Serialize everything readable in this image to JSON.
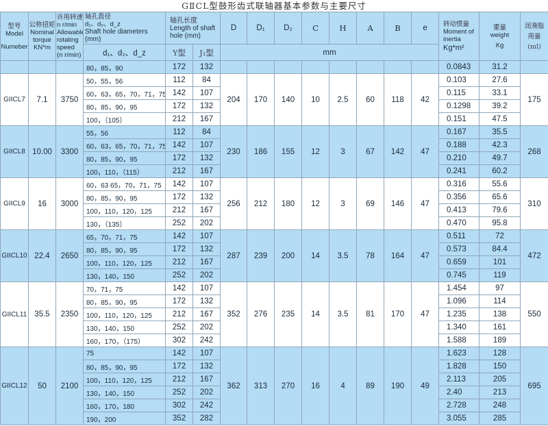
{
  "title": "GⅡCL型鼓形齿式联轴器基本参数与主要尺寸",
  "header": {
    "model": [
      "型号",
      "Model",
      "Numeber"
    ],
    "torque": [
      "公称扭矩",
      "Nominal",
      "torque",
      "KN*m"
    ],
    "speed": [
      "许用转速",
      "n r/min",
      "Allowable",
      "rotating",
      "speed",
      "(n r/min)"
    ],
    "diam": [
      "轴孔直径",
      "d₁、d₂、d_z",
      "Shaft hole diameters (mm)"
    ],
    "diam_sub": "d₁、d₂、d_z",
    "length": [
      "轴孔长度",
      "Length of shaft",
      "hole (mm)"
    ],
    "y_type": "Y型",
    "j_type": "J₁型",
    "dims": [
      "D",
      "D₁",
      "D₂",
      "C",
      "H",
      "A",
      "B",
      "e"
    ],
    "mm": "mm",
    "inertia": [
      "转动惯量",
      "Moment of",
      "inertia",
      "Kg*m²"
    ],
    "weight": [
      "重量",
      "weight",
      "Kg"
    ],
    "grease": [
      "润滑脂",
      "用量",
      "(ml)"
    ]
  },
  "colors": {
    "blue": "#b4dcf4",
    "border": "#8fa6b8"
  },
  "groups": [
    {
      "model": "",
      "torque": "",
      "speed": "",
      "dims": [
        "",
        "",
        "",
        "",
        "",
        "",
        "",
        ""
      ],
      "grease": "",
      "color": "blue",
      "rows": [
        [
          "80，85，90",
          "172",
          "132",
          "0.0843",
          "31.2"
        ]
      ]
    },
    {
      "model": "GIICL7",
      "torque": "7.1",
      "speed": "3750",
      "dims": [
        "204",
        "170",
        "140",
        "10",
        "2.5",
        "60",
        "118",
        "42"
      ],
      "grease": "175",
      "color": "white",
      "rows": [
        [
          "50，55，56",
          "112",
          "84",
          "0.103",
          "27.6"
        ],
        [
          "60，63，65，70，71，75",
          "142",
          "107",
          "0.115",
          "33.1"
        ],
        [
          "80，85，90，95",
          "172",
          "132",
          "0.1298",
          "39.2"
        ],
        [
          "100，（105）",
          "212",
          "167",
          "0.151",
          "47.5"
        ]
      ]
    },
    {
      "model": "GIICL8",
      "torque": "10.00",
      "speed": "3300",
      "dims": [
        "230",
        "186",
        "155",
        "12",
        "3",
        "67",
        "142",
        "47"
      ],
      "grease": "268",
      "color": "blue",
      "rows": [
        [
          "55，56",
          "112",
          "84",
          "0.167",
          "35.5"
        ],
        [
          "60，63，65，70，71，75",
          "142",
          "107",
          "0.188",
          "42.3"
        ],
        [
          "80，85，90，95",
          "172",
          "132",
          "0.210",
          "49.7"
        ],
        [
          "100，110，（115）",
          "212",
          "167",
          "0.241",
          "60.2"
        ]
      ]
    },
    {
      "model": "GIICL9",
      "torque": "16",
      "speed": "3000",
      "dims": [
        "256",
        "212",
        "180",
        "12",
        "3",
        "69",
        "146",
        "47"
      ],
      "grease": "310",
      "color": "white",
      "rows": [
        [
          "60，63  65，70，71，75",
          "142",
          "107",
          "0.316",
          "55.6"
        ],
        [
          "80，85，90，95",
          "172",
          "132",
          "0.356",
          "65.6"
        ],
        [
          "100，110，120，125",
          "212",
          "167",
          "0.413",
          "79.6"
        ],
        [
          "130，（135）",
          "252",
          "202",
          "0.470",
          "95.8"
        ]
      ]
    },
    {
      "model": "GIICL10",
      "torque": "22.4",
      "speed": "2650",
      "dims": [
        "287",
        "239",
        "200",
        "14",
        "3.5",
        "78",
        "164",
        "47"
      ],
      "grease": "472",
      "color": "blue",
      "rows": [
        [
          "65，70，71，75",
          "142",
          "107",
          "0.511",
          "72"
        ],
        [
          "80，85，90，95",
          "172",
          "132",
          "0.573",
          "84.4"
        ],
        [
          "100，110，120，125",
          "212",
          "167",
          "0.659",
          "101"
        ],
        [
          "130，140，150",
          "252",
          "202",
          "0.745",
          "119"
        ]
      ]
    },
    {
      "model": "GIICL11",
      "torque": "35.5",
      "speed": "2350",
      "dims": [
        "352",
        "276",
        "235",
        "14",
        "3.5",
        "81",
        "170",
        "47"
      ],
      "grease": "550",
      "color": "white",
      "rows": [
        [
          "70，71，75",
          "142",
          "107",
          "1.454",
          "97"
        ],
        [
          "80，85，90，95",
          "172",
          "132",
          "1.096",
          "114"
        ],
        [
          "100，110，120，125",
          "212",
          "167",
          "1.235",
          "138"
        ],
        [
          "130，140，150",
          "252",
          "202",
          "1.340",
          "161"
        ],
        [
          "160，170，（175）",
          "302",
          "242",
          "1.588",
          "189"
        ]
      ]
    },
    {
      "model": "GIICL12",
      "torque": "50",
      "speed": "2100",
      "dims": [
        "362",
        "313",
        "270",
        "16",
        "4",
        "89",
        "190",
        "49"
      ],
      "grease": "695",
      "color": "blue",
      "rows": [
        [
          "75",
          "142",
          "107",
          "1.623",
          "128"
        ],
        [
          "80，85，90，95",
          "172",
          "132",
          "1.828",
          "150"
        ],
        [
          "100，110，120，125",
          "212",
          "167",
          "2.113",
          "205"
        ],
        [
          "130，140，150",
          "252",
          "202",
          "2.40",
          "213"
        ],
        [
          "160，170，180",
          "302",
          "242",
          "2.728",
          "248"
        ],
        [
          "190，200",
          "352",
          "282",
          "3.055",
          "285"
        ]
      ]
    }
  ]
}
